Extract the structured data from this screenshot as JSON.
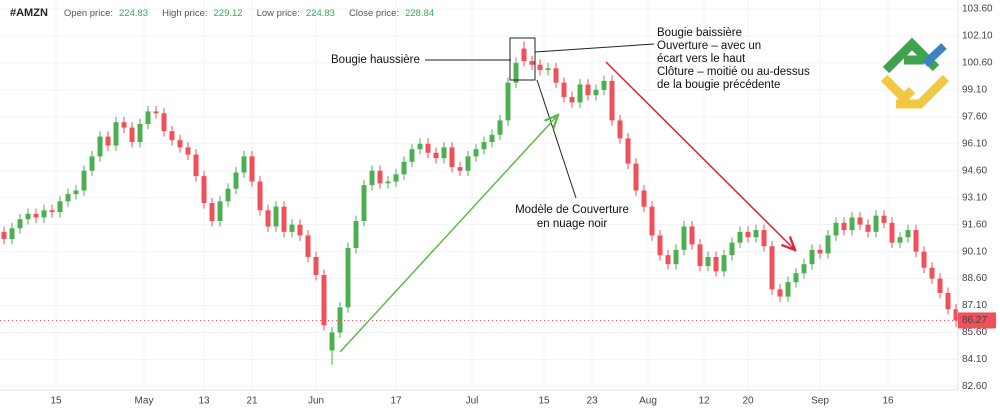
{
  "header": {
    "symbol": "#AMZN",
    "stats": [
      {
        "label": "Open price:",
        "value": "224.83"
      },
      {
        "label": "High price:",
        "value": "229.12"
      },
      {
        "label": "Low price:",
        "value": "224.83"
      },
      {
        "label": "Close price:",
        "value": "228.84"
      }
    ]
  },
  "chart_data": {
    "type": "candlestick",
    "up_color": "#4caf50",
    "down_color": "#f0505a",
    "grid": true,
    "xlim": [
      -0.5,
      119.25
    ],
    "ylim": [
      82.4,
      104.1
    ],
    "xticks": [
      {
        "value": 6.5,
        "label": "15"
      },
      {
        "value": 17.5,
        "label": "May"
      },
      {
        "value": 25,
        "label": "13"
      },
      {
        "value": 31,
        "label": "21"
      },
      {
        "value": 39,
        "label": "Jun"
      },
      {
        "value": 49,
        "label": "17"
      },
      {
        "value": 58.5,
        "label": "Jul"
      },
      {
        "value": 67.5,
        "label": "15"
      },
      {
        "value": 73.5,
        "label": "23"
      },
      {
        "value": 80.5,
        "label": "Aug"
      },
      {
        "value": 87.5,
        "label": "12"
      },
      {
        "value": 93,
        "label": "20"
      },
      {
        "value": 102,
        "label": "Sep"
      },
      {
        "value": 110.5,
        "label": "16"
      }
    ],
    "yticks": [
      {
        "value": 103.6,
        "label": "103.60"
      },
      {
        "value": 102.1,
        "label": "102.10"
      },
      {
        "value": 100.6,
        "label": "100.60"
      },
      {
        "value": 99.1,
        "label": "99.10"
      },
      {
        "value": 97.6,
        "label": "97.60"
      },
      {
        "value": 96.1,
        "label": "96.10"
      },
      {
        "value": 94.6,
        "label": "94.60"
      },
      {
        "value": 93.1,
        "label": "93.10"
      },
      {
        "value": 91.6,
        "label": "91.60"
      },
      {
        "value": 90.1,
        "label": "90.10"
      },
      {
        "value": 88.6,
        "label": "88.60"
      },
      {
        "value": 87.1,
        "label": "87.10"
      },
      {
        "value": 85.6,
        "label": "85.60"
      },
      {
        "value": 84.1,
        "label": "84.10"
      },
      {
        "value": 82.6,
        "label": "82.60"
      }
    ],
    "open": [
      91.2,
      90.8,
      91.4,
      91.9,
      92.2,
      92.0,
      92.4,
      92.3,
      92.9,
      93.3,
      93.5,
      94.6,
      95.4,
      96.5,
      96.0,
      97.3,
      97.0,
      96.2,
      97.2,
      97.9,
      97.8,
      96.8,
      96.3,
      95.9,
      95.5,
      94.3,
      92.8,
      91.8,
      92.9,
      93.6,
      94.5,
      95.4,
      94.0,
      92.4,
      91.5,
      92.6,
      91.2,
      91.6,
      91.0,
      89.8,
      88.8,
      84.6,
      85.6,
      87.0,
      90.3,
      91.8,
      93.8,
      94.6,
      93.9,
      94.0,
      94.4,
      95.1,
      95.8,
      96.1,
      95.6,
      95.3,
      95.9,
      94.8,
      94.6,
      95.4,
      95.8,
      96.2,
      96.6,
      97.4,
      99.5,
      101.4,
      100.7,
      100.5,
      100.2,
      100.3,
      99.5,
      98.7,
      98.4,
      99.4,
      98.8,
      99.1,
      99.6,
      97.4,
      96.4,
      95.0,
      93.5,
      92.6,
      91.0,
      89.9,
      89.4,
      90.2,
      91.5,
      90.5,
      89.3,
      89.8,
      89.0,
      89.9,
      90.6,
      91.2,
      90.9,
      91.3,
      90.4,
      88.0,
      87.6,
      88.4,
      88.9,
      89.4,
      90.2,
      90.0,
      91.0,
      91.7,
      91.3,
      92.0,
      91.6,
      91.2,
      92.1,
      91.7,
      90.6,
      90.9,
      91.3,
      90.1,
      89.2,
      88.6,
      87.8,
      86.9
    ],
    "high": [
      91.5,
      91.7,
      92.2,
      92.5,
      92.5,
      92.7,
      92.7,
      93.2,
      93.6,
      93.8,
      94.9,
      95.7,
      96.8,
      96.8,
      97.6,
      97.6,
      97.3,
      97.5,
      98.2,
      98.2,
      98.1,
      97.1,
      96.6,
      96.2,
      95.8,
      94.6,
      93.1,
      93.2,
      93.9,
      94.8,
      95.7,
      95.7,
      94.3,
      92.7,
      92.9,
      92.9,
      91.9,
      91.9,
      91.3,
      90.1,
      89.1,
      85.9,
      87.3,
      90.6,
      92.1,
      94.1,
      94.9,
      94.9,
      94.3,
      94.7,
      95.4,
      96.1,
      96.4,
      96.4,
      95.9,
      96.2,
      96.2,
      95.1,
      95.7,
      96.1,
      96.5,
      96.9,
      97.7,
      99.8,
      100.9,
      101.8,
      101.0,
      100.8,
      100.6,
      100.6,
      99.8,
      99.0,
      99.7,
      99.7,
      99.4,
      99.9,
      99.9,
      97.7,
      96.7,
      95.3,
      93.8,
      92.9,
      91.3,
      90.2,
      90.5,
      91.8,
      91.8,
      90.8,
      90.1,
      90.1,
      90.2,
      90.9,
      91.5,
      91.5,
      91.6,
      91.6,
      90.7,
      88.3,
      88.7,
      89.2,
      89.7,
      90.5,
      90.5,
      91.3,
      92.0,
      92.0,
      92.3,
      92.3,
      91.9,
      92.4,
      92.4,
      92.0,
      91.2,
      91.6,
      91.6,
      90.4,
      89.5,
      88.9,
      88.1,
      87.2
    ],
    "low": [
      90.5,
      90.5,
      91.1,
      91.6,
      91.7,
      91.7,
      92.0,
      92.0,
      92.6,
      93.0,
      93.2,
      94.3,
      95.1,
      95.7,
      95.7,
      96.7,
      95.9,
      95.9,
      96.9,
      97.5,
      96.5,
      96.0,
      95.6,
      95.2,
      94.0,
      92.5,
      91.5,
      91.5,
      92.6,
      93.3,
      94.2,
      93.7,
      92.1,
      91.2,
      91.2,
      90.9,
      90.9,
      90.7,
      89.5,
      88.5,
      85.7,
      83.8,
      85.3,
      86.7,
      90.0,
      91.5,
      93.5,
      93.6,
      93.6,
      93.7,
      94.1,
      94.8,
      95.5,
      95.3,
      95.0,
      95.0,
      94.5,
      94.3,
      94.3,
      95.1,
      95.5,
      95.9,
      96.3,
      97.1,
      99.2,
      100.4,
      100.2,
      99.9,
      99.9,
      99.2,
      98.4,
      98.1,
      98.1,
      98.5,
      98.5,
      98.8,
      97.1,
      96.1,
      94.7,
      93.2,
      92.3,
      90.7,
      89.6,
      89.1,
      89.1,
      89.9,
      90.2,
      89.0,
      89.0,
      88.7,
      88.7,
      89.6,
      90.3,
      90.6,
      90.6,
      90.1,
      87.7,
      87.3,
      87.3,
      88.1,
      88.6,
      89.1,
      89.7,
      89.7,
      90.7,
      91.0,
      91.0,
      91.3,
      90.9,
      90.9,
      91.4,
      90.3,
      90.3,
      90.6,
      89.8,
      88.9,
      88.3,
      87.5,
      86.6,
      85.9
    ],
    "close": [
      90.8,
      91.4,
      91.9,
      92.2,
      92.0,
      92.4,
      92.3,
      92.9,
      93.3,
      93.5,
      94.6,
      95.4,
      96.5,
      96.0,
      97.3,
      97.0,
      96.2,
      97.2,
      97.9,
      97.8,
      96.8,
      96.3,
      95.9,
      95.5,
      94.3,
      92.8,
      91.8,
      92.9,
      93.6,
      94.5,
      95.4,
      94.0,
      92.4,
      91.5,
      92.6,
      91.2,
      91.6,
      91.0,
      89.8,
      88.8,
      86.0,
      85.6,
      87.0,
      90.3,
      91.8,
      93.8,
      94.6,
      93.9,
      94.0,
      94.4,
      95.1,
      95.8,
      96.1,
      95.6,
      95.3,
      95.9,
      94.8,
      94.6,
      95.4,
      95.8,
      96.2,
      96.6,
      97.4,
      99.5,
      100.6,
      100.7,
      100.5,
      100.2,
      100.3,
      99.5,
      98.7,
      98.4,
      99.4,
      98.8,
      99.1,
      99.6,
      97.4,
      96.4,
      95.0,
      93.5,
      92.6,
      91.0,
      89.9,
      89.4,
      90.2,
      91.5,
      90.5,
      89.3,
      89.8,
      89.0,
      89.9,
      90.6,
      91.2,
      90.9,
      91.3,
      90.4,
      88.0,
      87.6,
      88.4,
      88.9,
      89.4,
      90.2,
      90.0,
      91.0,
      91.7,
      91.3,
      92.0,
      91.6,
      91.2,
      92.1,
      91.7,
      90.6,
      90.9,
      91.3,
      90.1,
      89.2,
      88.6,
      87.8,
      86.9,
      86.27
    ],
    "annotations": {
      "bullish": "Bougie haussière",
      "bearish": [
        "Bougie baissière",
        "Ouverture – avec un",
        "écart vers le haut",
        "Clôture – moitié ou au-dessus",
        "de la bougie précédente"
      ],
      "pattern": [
        "Modèle de Couverture",
        "en nuage noir"
      ]
    }
  }
}
